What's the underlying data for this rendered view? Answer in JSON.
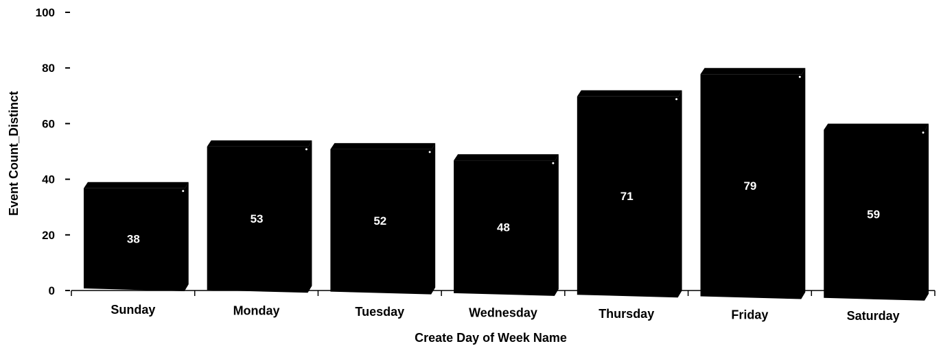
{
  "chart_data": {
    "type": "bar",
    "categories": [
      "Sunday",
      "Monday",
      "Tuesday",
      "Wednesday",
      "Thursday",
      "Friday",
      "Saturday"
    ],
    "values": [
      38,
      53,
      52,
      48,
      71,
      79,
      59
    ],
    "xlabel": "Create Day of Week Name",
    "ylabel": "Event Count_Distinct",
    "ylim": [
      0,
      100
    ],
    "yticks": [
      0,
      20,
      40,
      60,
      80,
      100
    ],
    "grid": false,
    "legend": "none",
    "bar_color": "#000000",
    "data_label_color": "#ffffff"
  }
}
